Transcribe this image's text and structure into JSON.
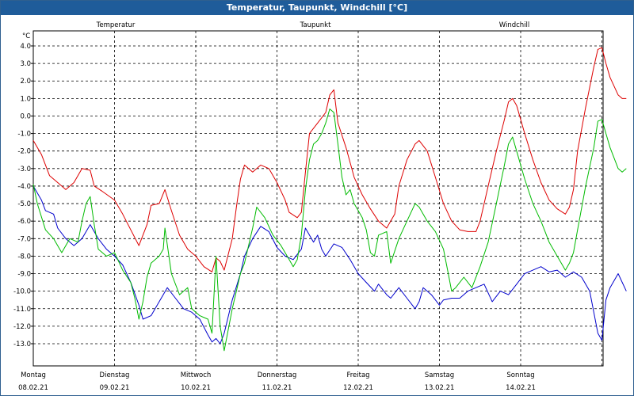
{
  "window": {
    "title": "Temperatur, Taupunkt, Windchill [°C]"
  },
  "chart_data": {
    "type": "line",
    "title": "Temperatur, Taupunkt, Windchill [°C]",
    "ylabel": "°C",
    "ylim": [
      -13.5,
      4.5
    ],
    "y_ticks": [
      4.0,
      3.0,
      2.0,
      1.0,
      0.0,
      -1.0,
      -2.0,
      -3.0,
      -4.0,
      -5.0,
      -6.0,
      -7.0,
      -8.0,
      -9.0,
      -10.0,
      -11.0,
      -12.0,
      -13.0
    ],
    "y_tick_labels": [
      "4.0",
      "3.0",
      "2.0",
      "1.0",
      "0.0",
      "-1.0",
      "-2.0",
      "-3.0",
      "-4.0",
      "-5.0",
      "-6.0",
      "-7.0",
      "-8.0",
      "-9.0",
      "-10.0",
      "-11.0",
      "-12.0",
      "-13.0"
    ],
    "xlim": [
      0,
      7.1
    ],
    "x_day_ticks": [
      0,
      1,
      2,
      3,
      4,
      5,
      6,
      7
    ],
    "x_labels": [
      {
        "day": "Montag",
        "date": "08.02.21"
      },
      {
        "day": "Dienstag",
        "date": "09.02.21"
      },
      {
        "day": "Mittwoch",
        "date": "10.02.21"
      },
      {
        "day": "Donnerstag",
        "date": "11.02.21"
      },
      {
        "day": "Freitag",
        "date": "12.02.21"
      },
      {
        "day": "Samstag",
        "date": "13.02.21"
      },
      {
        "day": "Sonntag",
        "date": "14.02.21"
      }
    ],
    "grid": true,
    "legend_placement": "top",
    "series": [
      {
        "name": "Temperatur",
        "color": "#dd0000",
        "points": [
          [
            0.0,
            -1.4
          ],
          [
            0.1,
            -2.2
          ],
          [
            0.2,
            -3.4
          ],
          [
            0.3,
            -3.8
          ],
          [
            0.4,
            -4.2
          ],
          [
            0.5,
            -3.8
          ],
          [
            0.6,
            -3.0
          ],
          [
            0.7,
            -3.1
          ],
          [
            0.75,
            -4.0
          ],
          [
            0.85,
            -4.3
          ],
          [
            1.0,
            -4.8
          ],
          [
            1.1,
            -5.6
          ],
          [
            1.2,
            -6.5
          ],
          [
            1.3,
            -7.4
          ],
          [
            1.4,
            -6.2
          ],
          [
            1.45,
            -5.1
          ],
          [
            1.55,
            -5.0
          ],
          [
            1.62,
            -4.2
          ],
          [
            1.7,
            -5.4
          ],
          [
            1.8,
            -6.8
          ],
          [
            1.9,
            -7.6
          ],
          [
            2.0,
            -8.0
          ],
          [
            2.1,
            -8.6
          ],
          [
            2.2,
            -8.9
          ],
          [
            2.25,
            -8.1
          ],
          [
            2.3,
            -8.3
          ],
          [
            2.35,
            -8.8
          ],
          [
            2.45,
            -7.0
          ],
          [
            2.5,
            -5.2
          ],
          [
            2.55,
            -3.6
          ],
          [
            2.6,
            -2.8
          ],
          [
            2.7,
            -3.2
          ],
          [
            2.8,
            -2.8
          ],
          [
            2.9,
            -3.0
          ],
          [
            3.0,
            -3.8
          ],
          [
            3.1,
            -4.8
          ],
          [
            3.15,
            -5.5
          ],
          [
            3.25,
            -5.8
          ],
          [
            3.3,
            -5.5
          ],
          [
            3.35,
            -3.2
          ],
          [
            3.4,
            -1.0
          ],
          [
            3.5,
            -0.4
          ],
          [
            3.6,
            0.2
          ],
          [
            3.65,
            1.2
          ],
          [
            3.7,
            1.5
          ],
          [
            3.75,
            -0.4
          ],
          [
            3.85,
            -1.8
          ],
          [
            3.95,
            -3.5
          ],
          [
            4.05,
            -4.5
          ],
          [
            4.15,
            -5.3
          ],
          [
            4.25,
            -6.0
          ],
          [
            4.35,
            -6.4
          ],
          [
            4.45,
            -5.6
          ],
          [
            4.5,
            -4.0
          ],
          [
            4.6,
            -2.5
          ],
          [
            4.7,
            -1.6
          ],
          [
            4.75,
            -1.4
          ],
          [
            4.85,
            -2.0
          ],
          [
            4.95,
            -3.5
          ],
          [
            5.05,
            -5.0
          ],
          [
            5.15,
            -6.0
          ],
          [
            5.25,
            -6.5
          ],
          [
            5.35,
            -6.6
          ],
          [
            5.45,
            -6.6
          ],
          [
            5.5,
            -6.0
          ],
          [
            5.6,
            -4.0
          ],
          [
            5.7,
            -2.0
          ],
          [
            5.8,
            -0.2
          ],
          [
            5.85,
            0.8
          ],
          [
            5.9,
            1.0
          ],
          [
            5.95,
            0.6
          ],
          [
            6.05,
            -1.0
          ],
          [
            6.15,
            -2.5
          ],
          [
            6.25,
            -3.8
          ],
          [
            6.35,
            -4.8
          ],
          [
            6.45,
            -5.3
          ],
          [
            6.55,
            -5.6
          ],
          [
            6.6,
            -5.2
          ],
          [
            6.65,
            -4.2
          ],
          [
            6.7,
            -2.0
          ],
          [
            6.8,
            0.5
          ],
          [
            6.9,
            2.8
          ],
          [
            6.95,
            3.8
          ],
          [
            7.0,
            3.9
          ],
          [
            7.05,
            3.0
          ],
          [
            7.1,
            2.2
          ],
          [
            7.2,
            1.2
          ],
          [
            7.25,
            1.0
          ],
          [
            7.3,
            1.0
          ]
        ]
      },
      {
        "name": "Taupunkt",
        "color": "#0000cc",
        "points": [
          [
            0.0,
            -4.0
          ],
          [
            0.1,
            -4.8
          ],
          [
            0.15,
            -5.4
          ],
          [
            0.25,
            -5.6
          ],
          [
            0.3,
            -6.4
          ],
          [
            0.4,
            -7.0
          ],
          [
            0.5,
            -7.4
          ],
          [
            0.6,
            -7.0
          ],
          [
            0.7,
            -6.2
          ],
          [
            0.8,
            -7.0
          ],
          [
            0.9,
            -7.6
          ],
          [
            1.0,
            -8.0
          ],
          [
            1.1,
            -8.5
          ],
          [
            1.2,
            -9.5
          ],
          [
            1.3,
            -10.8
          ],
          [
            1.35,
            -11.6
          ],
          [
            1.45,
            -11.4
          ],
          [
            1.55,
            -10.6
          ],
          [
            1.6,
            -10.2
          ],
          [
            1.65,
            -9.8
          ],
          [
            1.75,
            -10.4
          ],
          [
            1.85,
            -11.0
          ],
          [
            1.95,
            -11.2
          ],
          [
            2.05,
            -11.6
          ],
          [
            2.15,
            -12.5
          ],
          [
            2.2,
            -12.9
          ],
          [
            2.25,
            -12.7
          ],
          [
            2.3,
            -13.0
          ],
          [
            2.35,
            -12.4
          ],
          [
            2.45,
            -10.5
          ],
          [
            2.55,
            -9.0
          ],
          [
            2.6,
            -8.0
          ],
          [
            2.7,
            -7.0
          ],
          [
            2.8,
            -6.3
          ],
          [
            2.9,
            -6.6
          ],
          [
            3.0,
            -7.5
          ],
          [
            3.1,
            -8.0
          ],
          [
            3.2,
            -8.2
          ],
          [
            3.3,
            -7.6
          ],
          [
            3.35,
            -6.4
          ],
          [
            3.45,
            -7.2
          ],
          [
            3.5,
            -6.8
          ],
          [
            3.55,
            -7.6
          ],
          [
            3.6,
            -8.0
          ],
          [
            3.7,
            -7.3
          ],
          [
            3.8,
            -7.5
          ],
          [
            3.9,
            -8.2
          ],
          [
            4.0,
            -9.0
          ],
          [
            4.1,
            -9.5
          ],
          [
            4.2,
            -10.0
          ],
          [
            4.25,
            -9.6
          ],
          [
            4.35,
            -10.2
          ],
          [
            4.4,
            -10.4
          ],
          [
            4.5,
            -9.8
          ],
          [
            4.6,
            -10.4
          ],
          [
            4.7,
            -11.0
          ],
          [
            4.75,
            -10.6
          ],
          [
            4.8,
            -9.8
          ],
          [
            4.9,
            -10.2
          ],
          [
            5.0,
            -10.8
          ],
          [
            5.05,
            -10.5
          ],
          [
            5.15,
            -10.4
          ],
          [
            5.25,
            -10.4
          ],
          [
            5.35,
            -10.0
          ],
          [
            5.45,
            -9.8
          ],
          [
            5.55,
            -9.6
          ],
          [
            5.65,
            -10.6
          ],
          [
            5.75,
            -10.0
          ],
          [
            5.85,
            -10.2
          ],
          [
            5.95,
            -9.6
          ],
          [
            6.05,
            -9.0
          ],
          [
            6.15,
            -8.8
          ],
          [
            6.25,
            -8.6
          ],
          [
            6.35,
            -8.9
          ],
          [
            6.45,
            -8.8
          ],
          [
            6.55,
            -9.2
          ],
          [
            6.65,
            -8.9
          ],
          [
            6.75,
            -9.2
          ],
          [
            6.85,
            -10.0
          ],
          [
            6.95,
            -12.4
          ],
          [
            7.0,
            -12.8
          ],
          [
            7.05,
            -10.5
          ],
          [
            7.1,
            -9.8
          ],
          [
            7.2,
            -9.0
          ],
          [
            7.3,
            -10.0
          ]
        ]
      },
      {
        "name": "Windchill",
        "color": "#00bb00",
        "points": [
          [
            0.0,
            -3.9
          ],
          [
            0.05,
            -5.0
          ],
          [
            0.15,
            -6.5
          ],
          [
            0.25,
            -7.0
          ],
          [
            0.35,
            -7.8
          ],
          [
            0.45,
            -7.0
          ],
          [
            0.55,
            -7.2
          ],
          [
            0.6,
            -6.0
          ],
          [
            0.65,
            -5.0
          ],
          [
            0.7,
            -4.6
          ],
          [
            0.75,
            -6.2
          ],
          [
            0.8,
            -7.6
          ],
          [
            0.9,
            -8.0
          ],
          [
            1.0,
            -7.8
          ],
          [
            1.1,
            -8.8
          ],
          [
            1.2,
            -9.5
          ],
          [
            1.25,
            -10.4
          ],
          [
            1.3,
            -11.6
          ],
          [
            1.35,
            -10.6
          ],
          [
            1.4,
            -9.2
          ],
          [
            1.45,
            -8.4
          ],
          [
            1.55,
            -8.0
          ],
          [
            1.6,
            -7.6
          ],
          [
            1.62,
            -6.4
          ],
          [
            1.7,
            -9.0
          ],
          [
            1.8,
            -10.2
          ],
          [
            1.9,
            -9.8
          ],
          [
            1.95,
            -11.0
          ],
          [
            2.05,
            -11.4
          ],
          [
            2.15,
            -11.6
          ],
          [
            2.2,
            -12.4
          ],
          [
            2.25,
            -8.0
          ],
          [
            2.3,
            -12.0
          ],
          [
            2.35,
            -13.4
          ],
          [
            2.45,
            -11.0
          ],
          [
            2.55,
            -9.0
          ],
          [
            2.6,
            -8.4
          ],
          [
            2.7,
            -6.4
          ],
          [
            2.75,
            -5.2
          ],
          [
            2.85,
            -5.8
          ],
          [
            2.95,
            -6.8
          ],
          [
            3.05,
            -7.4
          ],
          [
            3.15,
            -8.2
          ],
          [
            3.2,
            -8.6
          ],
          [
            3.25,
            -8.2
          ],
          [
            3.3,
            -6.8
          ],
          [
            3.35,
            -4.2
          ],
          [
            3.4,
            -2.5
          ],
          [
            3.45,
            -1.6
          ],
          [
            3.5,
            -1.4
          ],
          [
            3.55,
            -1.0
          ],
          [
            3.6,
            -0.4
          ],
          [
            3.65,
            0.4
          ],
          [
            3.7,
            0.2
          ],
          [
            3.75,
            -1.6
          ],
          [
            3.8,
            -3.5
          ],
          [
            3.85,
            -4.5
          ],
          [
            3.9,
            -4.2
          ],
          [
            3.95,
            -5.0
          ],
          [
            4.05,
            -5.8
          ],
          [
            4.1,
            -6.5
          ],
          [
            4.15,
            -7.8
          ],
          [
            4.2,
            -8.0
          ],
          [
            4.25,
            -6.8
          ],
          [
            4.35,
            -6.6
          ],
          [
            4.4,
            -8.4
          ],
          [
            4.5,
            -7.0
          ],
          [
            4.6,
            -6.0
          ],
          [
            4.7,
            -5.0
          ],
          [
            4.75,
            -5.2
          ],
          [
            4.85,
            -6.0
          ],
          [
            4.95,
            -6.6
          ],
          [
            5.05,
            -7.6
          ],
          [
            5.1,
            -8.8
          ],
          [
            5.15,
            -10.0
          ],
          [
            5.2,
            -9.8
          ],
          [
            5.3,
            -9.2
          ],
          [
            5.4,
            -9.8
          ],
          [
            5.5,
            -8.6
          ],
          [
            5.6,
            -7.2
          ],
          [
            5.7,
            -5.0
          ],
          [
            5.8,
            -2.8
          ],
          [
            5.85,
            -1.6
          ],
          [
            5.9,
            -1.2
          ],
          [
            5.95,
            -2.0
          ],
          [
            6.05,
            -3.6
          ],
          [
            6.15,
            -5.0
          ],
          [
            6.25,
            -6.0
          ],
          [
            6.3,
            -6.6
          ],
          [
            6.35,
            -7.2
          ],
          [
            6.45,
            -8.0
          ],
          [
            6.55,
            -8.8
          ],
          [
            6.6,
            -8.4
          ],
          [
            6.65,
            -7.8
          ],
          [
            6.7,
            -6.5
          ],
          [
            6.8,
            -4.0
          ],
          [
            6.9,
            -1.8
          ],
          [
            6.95,
            -0.3
          ],
          [
            7.0,
            -0.2
          ],
          [
            7.05,
            -1.0
          ],
          [
            7.1,
            -1.8
          ],
          [
            7.2,
            -3.0
          ],
          [
            7.25,
            -3.2
          ],
          [
            7.3,
            -3.0
          ]
        ]
      }
    ]
  }
}
